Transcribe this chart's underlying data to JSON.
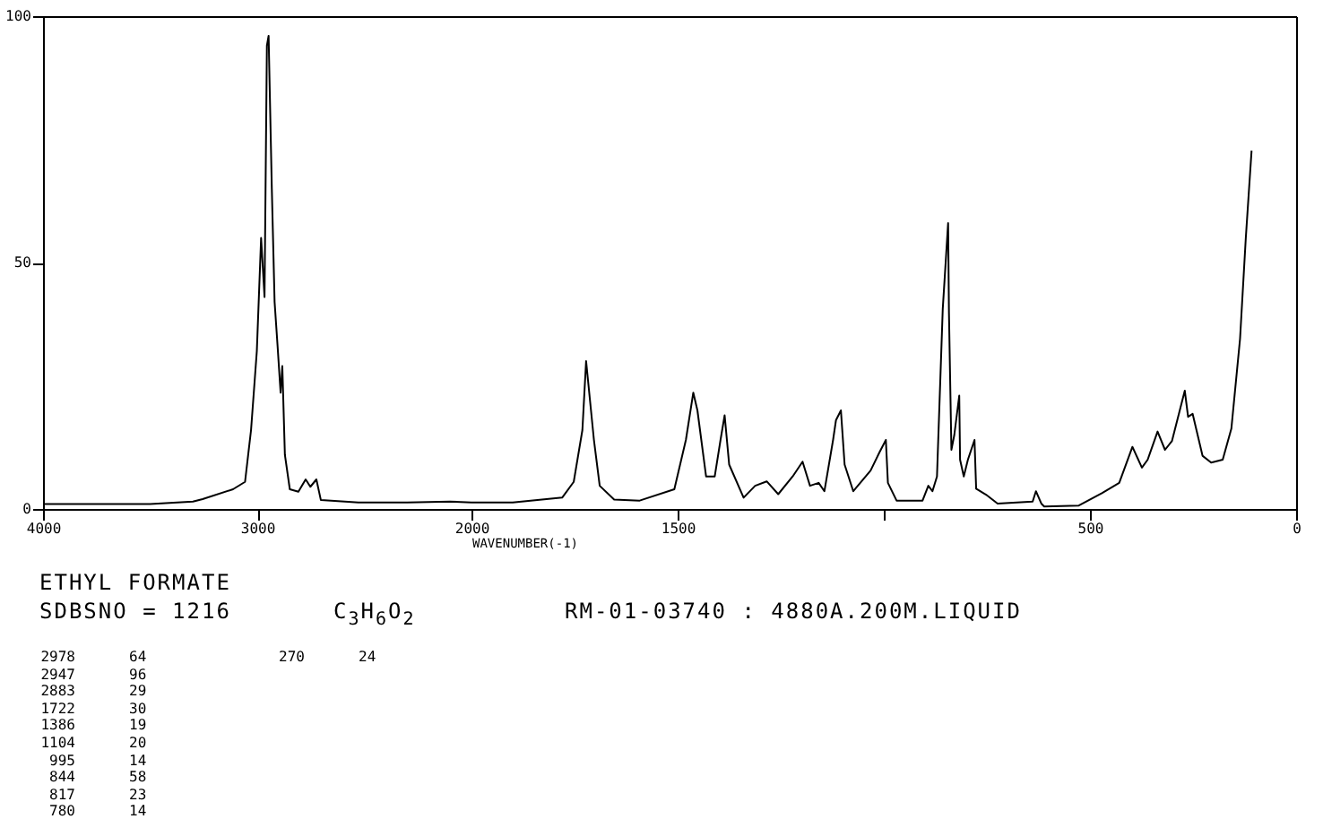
{
  "chart_data": [
    {
      "type": "line",
      "xlim": [
        4000,
        2000
      ],
      "xticks": [
        4000,
        3000,
        2000
      ],
      "ylim": [
        0,
        100
      ],
      "yticks": [
        0,
        50,
        100
      ],
      "series": [
        {
          "color": "#000000",
          "x": [
            4000,
            3700,
            3500,
            3300,
            3255,
            3113,
            3057,
            3029,
            3002,
            2982,
            2966,
            2955,
            2947,
            2932,
            2919,
            2905,
            2891,
            2883,
            2871,
            2848,
            2808,
            2774,
            2752,
            2724,
            2703,
            2528,
            2300,
            2100,
            2000
          ],
          "values": [
            1,
            1,
            1,
            1.5,
            2,
            4,
            5.5,
            16,
            32,
            55,
            43,
            94,
            96,
            65,
            42,
            33,
            23.6,
            29,
            11,
            4,
            3.5,
            6,
            4.5,
            6,
            1.8,
            1.3,
            1.3,
            1.5,
            1.3
          ]
        }
      ],
      "annotations": [
        "ETHYL FORMATE",
        "SDBSNO = 1216",
        "C$_{3}$H$_{6}$O$_{2}$",
        "RM-01-03740 : 4880A.200M.LIQUID",
        "2978 64",
        "2947 96",
        "2883 29",
        "1722 30",
        "1386 19",
        "1104 20",
        "995 14",
        "844 58",
        "817 23",
        "780 14",
        "270 24"
      ]
    },
    {
      "type": "line",
      "xlabel": "WAVENUMBER(-1)",
      "xlim": [
        2000,
        0
      ],
      "xticks": [
        1500,
        {
          "value": 1000,
          "label": null
        },
        500,
        0
      ],
      "ylim": [
        0,
        100
      ],
      "tick_labels": "x",
      "series": [
        {
          "color": "#000000",
          "x": [
            2000,
            1900,
            1780,
            1752,
            1731,
            1722,
            1703,
            1689,
            1654,
            1592,
            1508,
            1480,
            1462,
            1452,
            1431,
            1410,
            1396,
            1386,
            1375,
            1340,
            1312,
            1284,
            1256,
            1221,
            1197,
            1179,
            1158,
            1144,
            1123,
            1116,
            1104,
            1095,
            1074,
            1032,
            1011,
            995,
            990,
            969,
            906,
            892,
            882,
            871,
            857,
            844,
            842,
            836,
            829,
            817,
            815,
            806,
            796,
            780,
            776,
            752,
            724,
            639,
            631,
            618,
            611,
            527,
            471,
            429,
            397,
            374,
            360,
            336,
            318,
            301,
            270,
            262,
            251,
            227,
            206,
            178,
            157,
            136,
            122,
            108
          ],
          "values": [
            1.3,
            1.3,
            2.3,
            5.5,
            16,
            30,
            14,
            4.7,
            1.9,
            1.7,
            4,
            14,
            23.6,
            20,
            6.6,
            6.6,
            14,
            19,
            9,
            2.3,
            4.7,
            5.6,
            3,
            6.6,
            9.6,
            4.7,
            5.3,
            3.6,
            14,
            18,
            20,
            9,
            3.6,
            7.8,
            11.4,
            14,
            5.3,
            1.7,
            1.7,
            4.7,
            3.6,
            6.6,
            40.6,
            58,
            40,
            12,
            15,
            23,
            10,
            6.6,
            10,
            14,
            4.1,
            2.9,
            1.1,
            1.5,
            3.6,
            1.1,
            0.5,
            0.7,
            3.2,
            5.3,
            12.6,
            8.4,
            10,
            15.7,
            12,
            13.8,
            24,
            18.7,
            19.3,
            10.8,
            9.4,
            10,
            16.3,
            34.5,
            55,
            72.7
          ]
        }
      ]
    }
  ]
}
